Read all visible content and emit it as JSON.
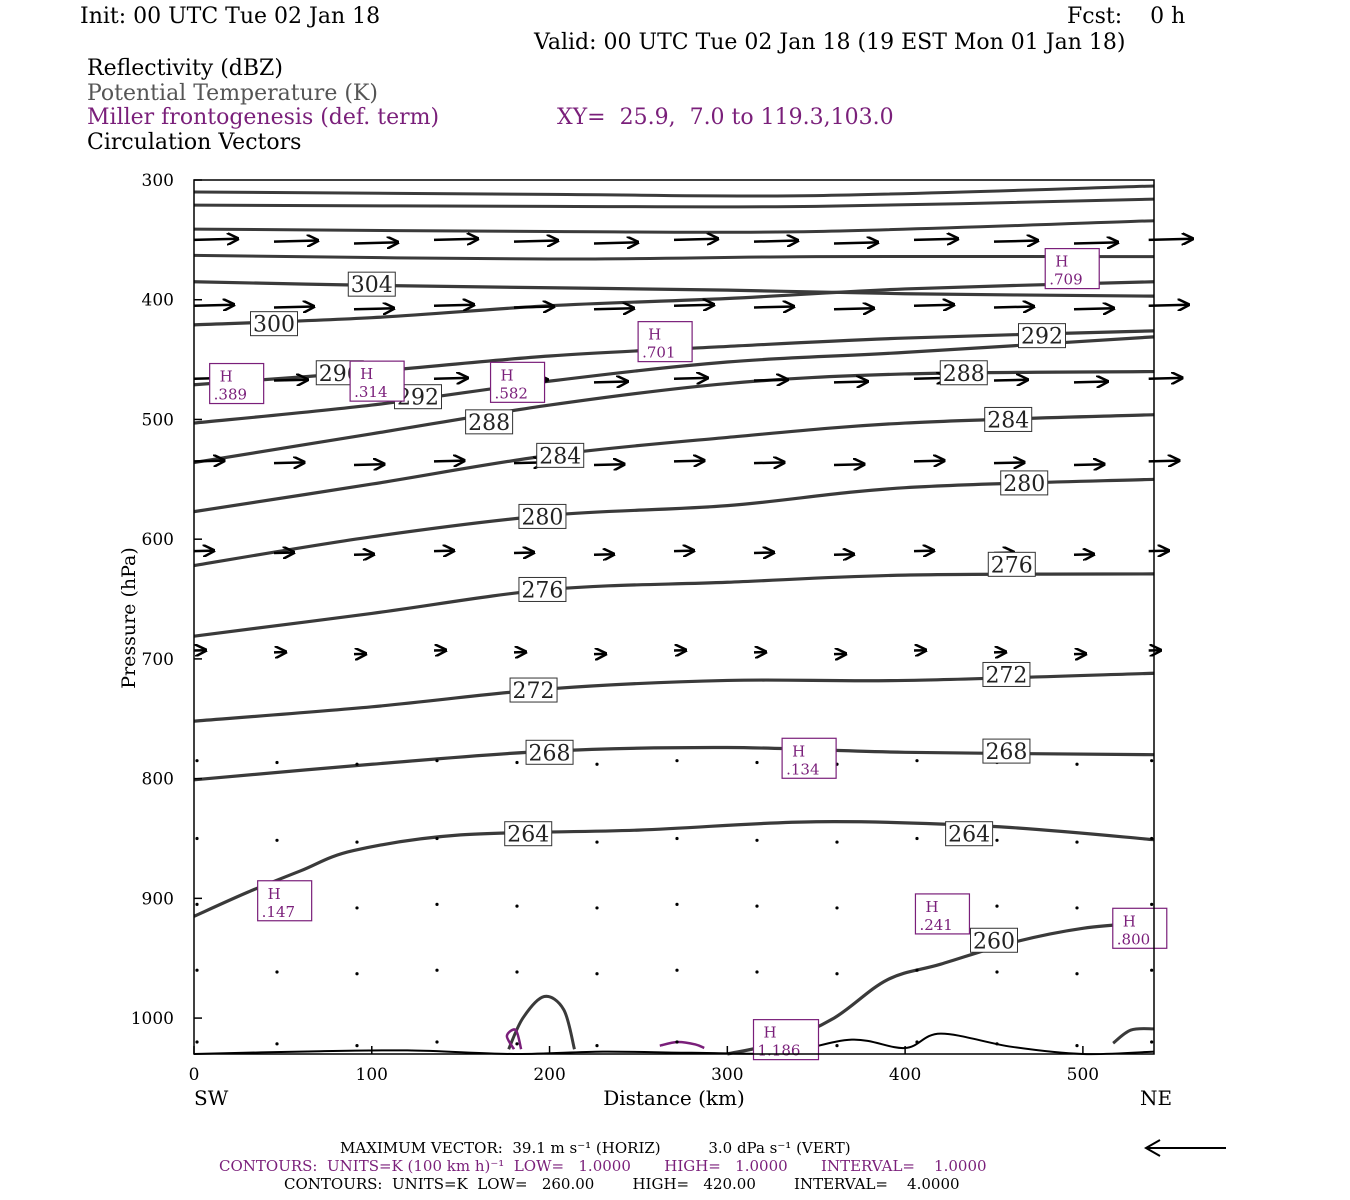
{
  "header": {
    "init": "Init: 00 UTC Tue 02 Jan 18",
    "fcst": "Fcst:    0 h",
    "valid": "Valid: 00 UTC Tue 02 Jan 18 (19 EST Mon 01 Jan 18)",
    "line1": "Reflectivity (dBZ)",
    "line2": "Potential Temperature (K)",
    "line3": "Miller frontogenesis (def. term)",
    "xy": "XY=  25.9,  7.0 to 119.3,103.0",
    "line4": "Circulation Vectors"
  },
  "colors": {
    "purple": "#7a1f7a",
    "contour": "#3a3a3a",
    "gray_text": "#555555"
  },
  "chart_data": {
    "type": "line",
    "xlabel": "Distance (km)",
    "ylabel": "Pressure (hPa)",
    "xlim": [
      0,
      540
    ],
    "ylim": [
      300,
      1030
    ],
    "x_ticks": [
      "0",
      "100",
      "200",
      "300",
      "400",
      "500"
    ],
    "y_ticks": [
      "300",
      "400",
      "500",
      "600",
      "700",
      "800",
      "900",
      "1000"
    ],
    "end_labels": {
      "left": "SW",
      "right": "NE"
    },
    "theta_contours": [
      {
        "label": "304",
        "label_at": [
          100,
          387
        ],
        "points": [
          [
            0,
            385
          ],
          [
            100,
            388
          ],
          [
            200,
            390
          ],
          [
            300,
            392
          ],
          [
            400,
            395
          ],
          [
            540,
            397
          ]
        ]
      },
      {
        "label": "300",
        "label_at": [
          45,
          420
        ],
        "points": [
          [
            0,
            421
          ],
          [
            100,
            415
          ],
          [
            200,
            405
          ],
          [
            300,
            399
          ],
          [
            400,
            391
          ],
          [
            540,
            385
          ]
        ]
      },
      {
        "label": "296",
        "label_at": [
          82,
          461
        ],
        "points": [
          [
            0,
            471
          ],
          [
            100,
            460
          ],
          [
            200,
            447
          ],
          [
            300,
            439
          ],
          [
            400,
            432
          ],
          [
            540,
            426
          ]
        ]
      },
      {
        "label": "292",
        "label_at": [
          126,
          481
        ],
        "points": [
          [
            0,
            503
          ],
          [
            100,
            488
          ],
          [
            200,
            468
          ],
          [
            300,
            452
          ],
          [
            400,
            444
          ],
          [
            540,
            431
          ]
        ]
      },
      {
        "label": "288",
        "label_at": [
          166,
          502
        ],
        "points": [
          [
            0,
            536
          ],
          [
            100,
            512
          ],
          [
            200,
            488
          ],
          [
            300,
            470
          ],
          [
            400,
            462
          ],
          [
            540,
            460
          ]
        ]
      },
      {
        "label": "284",
        "label_at": [
          206,
          530
        ],
        "points": [
          [
            0,
            577
          ],
          [
            100,
            554
          ],
          [
            200,
            530
          ],
          [
            300,
            515
          ],
          [
            400,
            503
          ],
          [
            540,
            496
          ]
        ]
      },
      {
        "label": "280",
        "label_at": [
          196,
          581
        ],
        "points": [
          [
            0,
            622
          ],
          [
            100,
            598
          ],
          [
            200,
            580
          ],
          [
            300,
            572
          ],
          [
            400,
            557
          ],
          [
            540,
            550
          ]
        ]
      },
      {
        "label": "276",
        "label_at": [
          196,
          642
        ],
        "points": [
          [
            0,
            681
          ],
          [
            100,
            662
          ],
          [
            200,
            642
          ],
          [
            300,
            636
          ],
          [
            400,
            630
          ],
          [
            540,
            629
          ]
        ]
      },
      {
        "label": "272",
        "label_at": [
          191,
          726
        ],
        "points": [
          [
            0,
            752
          ],
          [
            100,
            740
          ],
          [
            200,
            725
          ],
          [
            300,
            718
          ],
          [
            400,
            718
          ],
          [
            540,
            712
          ]
        ]
      },
      {
        "label": "268",
        "label_at": [
          200,
          778
        ],
        "points": [
          [
            0,
            801
          ],
          [
            100,
            788
          ],
          [
            200,
            777
          ],
          [
            300,
            774
          ],
          [
            400,
            778
          ],
          [
            540,
            780
          ]
        ]
      },
      {
        "label": "264",
        "label_at": [
          188,
          846
        ],
        "points": [
          [
            0,
            915
          ],
          [
            30,
            895
          ],
          [
            60,
            877
          ],
          [
            90,
            860
          ],
          [
            150,
            847
          ],
          [
            250,
            843
          ],
          [
            350,
            836
          ],
          [
            450,
            840
          ],
          [
            540,
            851
          ]
        ]
      },
      {
        "label": "260",
        "label_at": [
          450,
          935
        ],
        "points": [
          [
            300,
            1030
          ],
          [
            330,
            1020
          ],
          [
            360,
            1000
          ],
          [
            390,
            968
          ],
          [
            420,
            955
          ],
          [
            460,
            937
          ],
          [
            500,
            925
          ],
          [
            540,
            920
          ]
        ]
      }
    ],
    "contour_labels_right": [
      {
        "label": "292",
        "at": [
          477,
          430
        ]
      },
      {
        "label": "288",
        "at": [
          433,
          461
        ]
      },
      {
        "label": "284",
        "at": [
          458,
          500
        ]
      },
      {
        "label": "280",
        "at": [
          467,
          553
        ]
      },
      {
        "label": "276",
        "at": [
          460,
          621
        ]
      },
      {
        "label": "272",
        "at": [
          457,
          713
        ]
      },
      {
        "label": "268",
        "at": [
          457,
          777
        ]
      },
      {
        "label": "264",
        "at": [
          436,
          846
        ]
      }
    ],
    "frontogenesis_highs": [
      {
        "letter": "H",
        "value": ".709",
        "at": [
          494,
          374
        ]
      },
      {
        "letter": "H",
        "value": ".701",
        "at": [
          265,
          435
        ]
      },
      {
        "letter": "H",
        "value": ".389",
        "at": [
          24,
          470
        ]
      },
      {
        "letter": "H",
        "value": ".314",
        "at": [
          103,
          468
        ]
      },
      {
        "letter": "H",
        "value": ".582",
        "at": [
          182,
          469
        ]
      },
      {
        "letter": "H",
        "value": ".134",
        "at": [
          346,
          783
        ]
      },
      {
        "letter": "H",
        "value": ".147",
        "at": [
          51,
          902
        ]
      },
      {
        "letter": "H",
        "value": ".241",
        "at": [
          421,
          913
        ]
      },
      {
        "letter": "H",
        "value": ".800",
        "at": [
          532,
          925
        ]
      },
      {
        "letter": "H",
        "value": "1.186",
        "at": [
          333,
          1018
        ]
      }
    ],
    "vector_rows": [
      {
        "p": 350,
        "len": 0.55
      },
      {
        "p": 405,
        "len": 0.5
      },
      {
        "p": 466,
        "len": 0.42
      },
      {
        "p": 535,
        "len": 0.38
      },
      {
        "p": 610,
        "len": 0.25
      },
      {
        "p": 693,
        "len": 0.15
      },
      {
        "p": 785,
        "len": 0.0
      },
      {
        "p": 850,
        "len": 0.0
      },
      {
        "p": 905,
        "len": 0.0
      },
      {
        "p": 960,
        "len": 0.0
      },
      {
        "p": 1020,
        "len": 0.0
      }
    ]
  },
  "footer": {
    "max_vector": "MAXIMUM VECTOR:  39.1 m s⁻¹ (HORIZ)          3.0 dPa s⁻¹ (VERT)",
    "contours1": "CONTOURS:  UNITS=K (100 km h)⁻¹  LOW=   1.0000       HIGH=   1.0000       INTERVAL=    1.0000",
    "contours2": "CONTOURS:  UNITS=K  LOW=   260.00        HIGH=   420.00        INTERVAL=    4.0000"
  }
}
